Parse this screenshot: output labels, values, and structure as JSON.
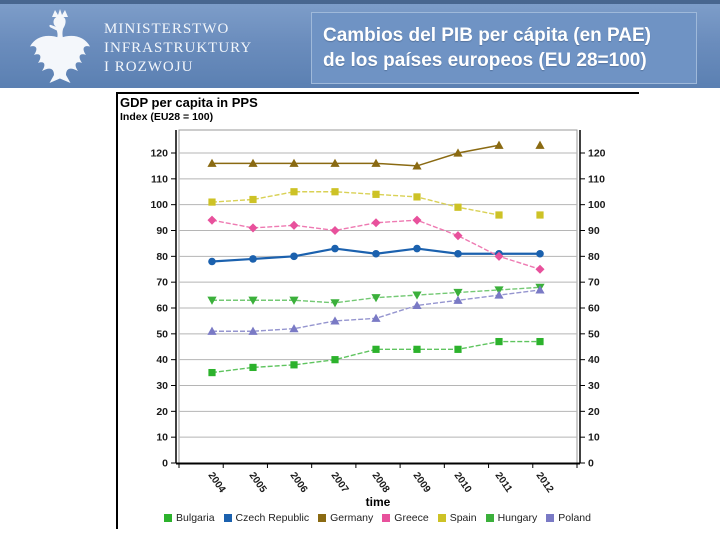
{
  "header": {
    "ministry_lines": [
      "MINISTERSTWO",
      "INFRASTRUKTURY",
      "I ROZWOJU"
    ],
    "slide_title_line1": "Cambios del PIB per cápita (en PAE)",
    "slide_title_line2": "de los países europeos (EU 28=100)"
  },
  "colors": {
    "header_top": "#7d9dc9",
    "header_bottom": "#5b80b2",
    "title_box_bg": "#6f93c4",
    "title_box_border": "#9fb9da",
    "gridline": "#b5b5b5",
    "plot_frame": "#9a9a9a",
    "axis": "#000000"
  },
  "chart_data": {
    "type": "line",
    "title": "GDP per capita in PPS",
    "subtitle": "Index (EU28 = 100)",
    "xlabel": "time",
    "ylabel": "",
    "x": [
      "2004",
      "2005",
      "2006",
      "2007",
      "2008",
      "2009",
      "2010",
      "2011",
      "2012"
    ],
    "ylim": [
      0,
      129
    ],
    "yticks": [
      0,
      10,
      20,
      30,
      40,
      50,
      60,
      70,
      80,
      90,
      100,
      110,
      120
    ],
    "grid": true,
    "axis_labels_both_sides": true,
    "legend_position": "bottom",
    "series": [
      {
        "name": "Bulgaria",
        "marker": "square",
        "color": "#2cb22c",
        "line_color": "#5fc45f",
        "dash": true,
        "width": 1.4,
        "gap_before_last": false,
        "values": [
          35,
          37,
          38,
          40,
          44,
          44,
          44,
          47,
          47
        ]
      },
      {
        "name": "Czech Republic",
        "marker": "circle",
        "color": "#1b61ae",
        "line_color": "#1b61ae",
        "dash": false,
        "width": 2.2,
        "gap_before_last": false,
        "values": [
          78,
          79,
          80,
          83,
          81,
          83,
          81,
          81,
          81
        ]
      },
      {
        "name": "Germany",
        "marker": "triangle-up",
        "color": "#8a6a12",
        "line_color": "#8a6a12",
        "dash": false,
        "width": 1.5,
        "gap_before_last": true,
        "values": [
          116,
          116,
          116,
          116,
          116,
          115,
          120,
          123,
          123
        ]
      },
      {
        "name": "Greece",
        "marker": "diamond",
        "color": "#e8519c",
        "line_color": "#ee7ab2",
        "dash": true,
        "width": 1.4,
        "gap_before_last": false,
        "values": [
          94,
          91,
          92,
          90,
          93,
          94,
          88,
          80,
          75
        ]
      },
      {
        "name": "Spain",
        "marker": "square",
        "color": "#cdc226",
        "line_color": "#d9d155",
        "dash": true,
        "width": 1.4,
        "gap_before_last": true,
        "values": [
          101,
          102,
          105,
          105,
          104,
          103,
          99,
          96,
          96
        ]
      },
      {
        "name": "Hungary",
        "marker": "triangle-down",
        "color": "#3bb03b",
        "line_color": "#74c974",
        "dash": true,
        "width": 1.4,
        "gap_before_last": false,
        "values": [
          63,
          63,
          63,
          62,
          64,
          65,
          66,
          67,
          68
        ]
      },
      {
        "name": "Poland",
        "marker": "triangle-up",
        "color": "#7a7ac5",
        "line_color": "#9595cf",
        "dash": true,
        "width": 1.4,
        "gap_before_last": false,
        "values": [
          51,
          51,
          52,
          55,
          56,
          61,
          63,
          65,
          67
        ]
      }
    ]
  }
}
